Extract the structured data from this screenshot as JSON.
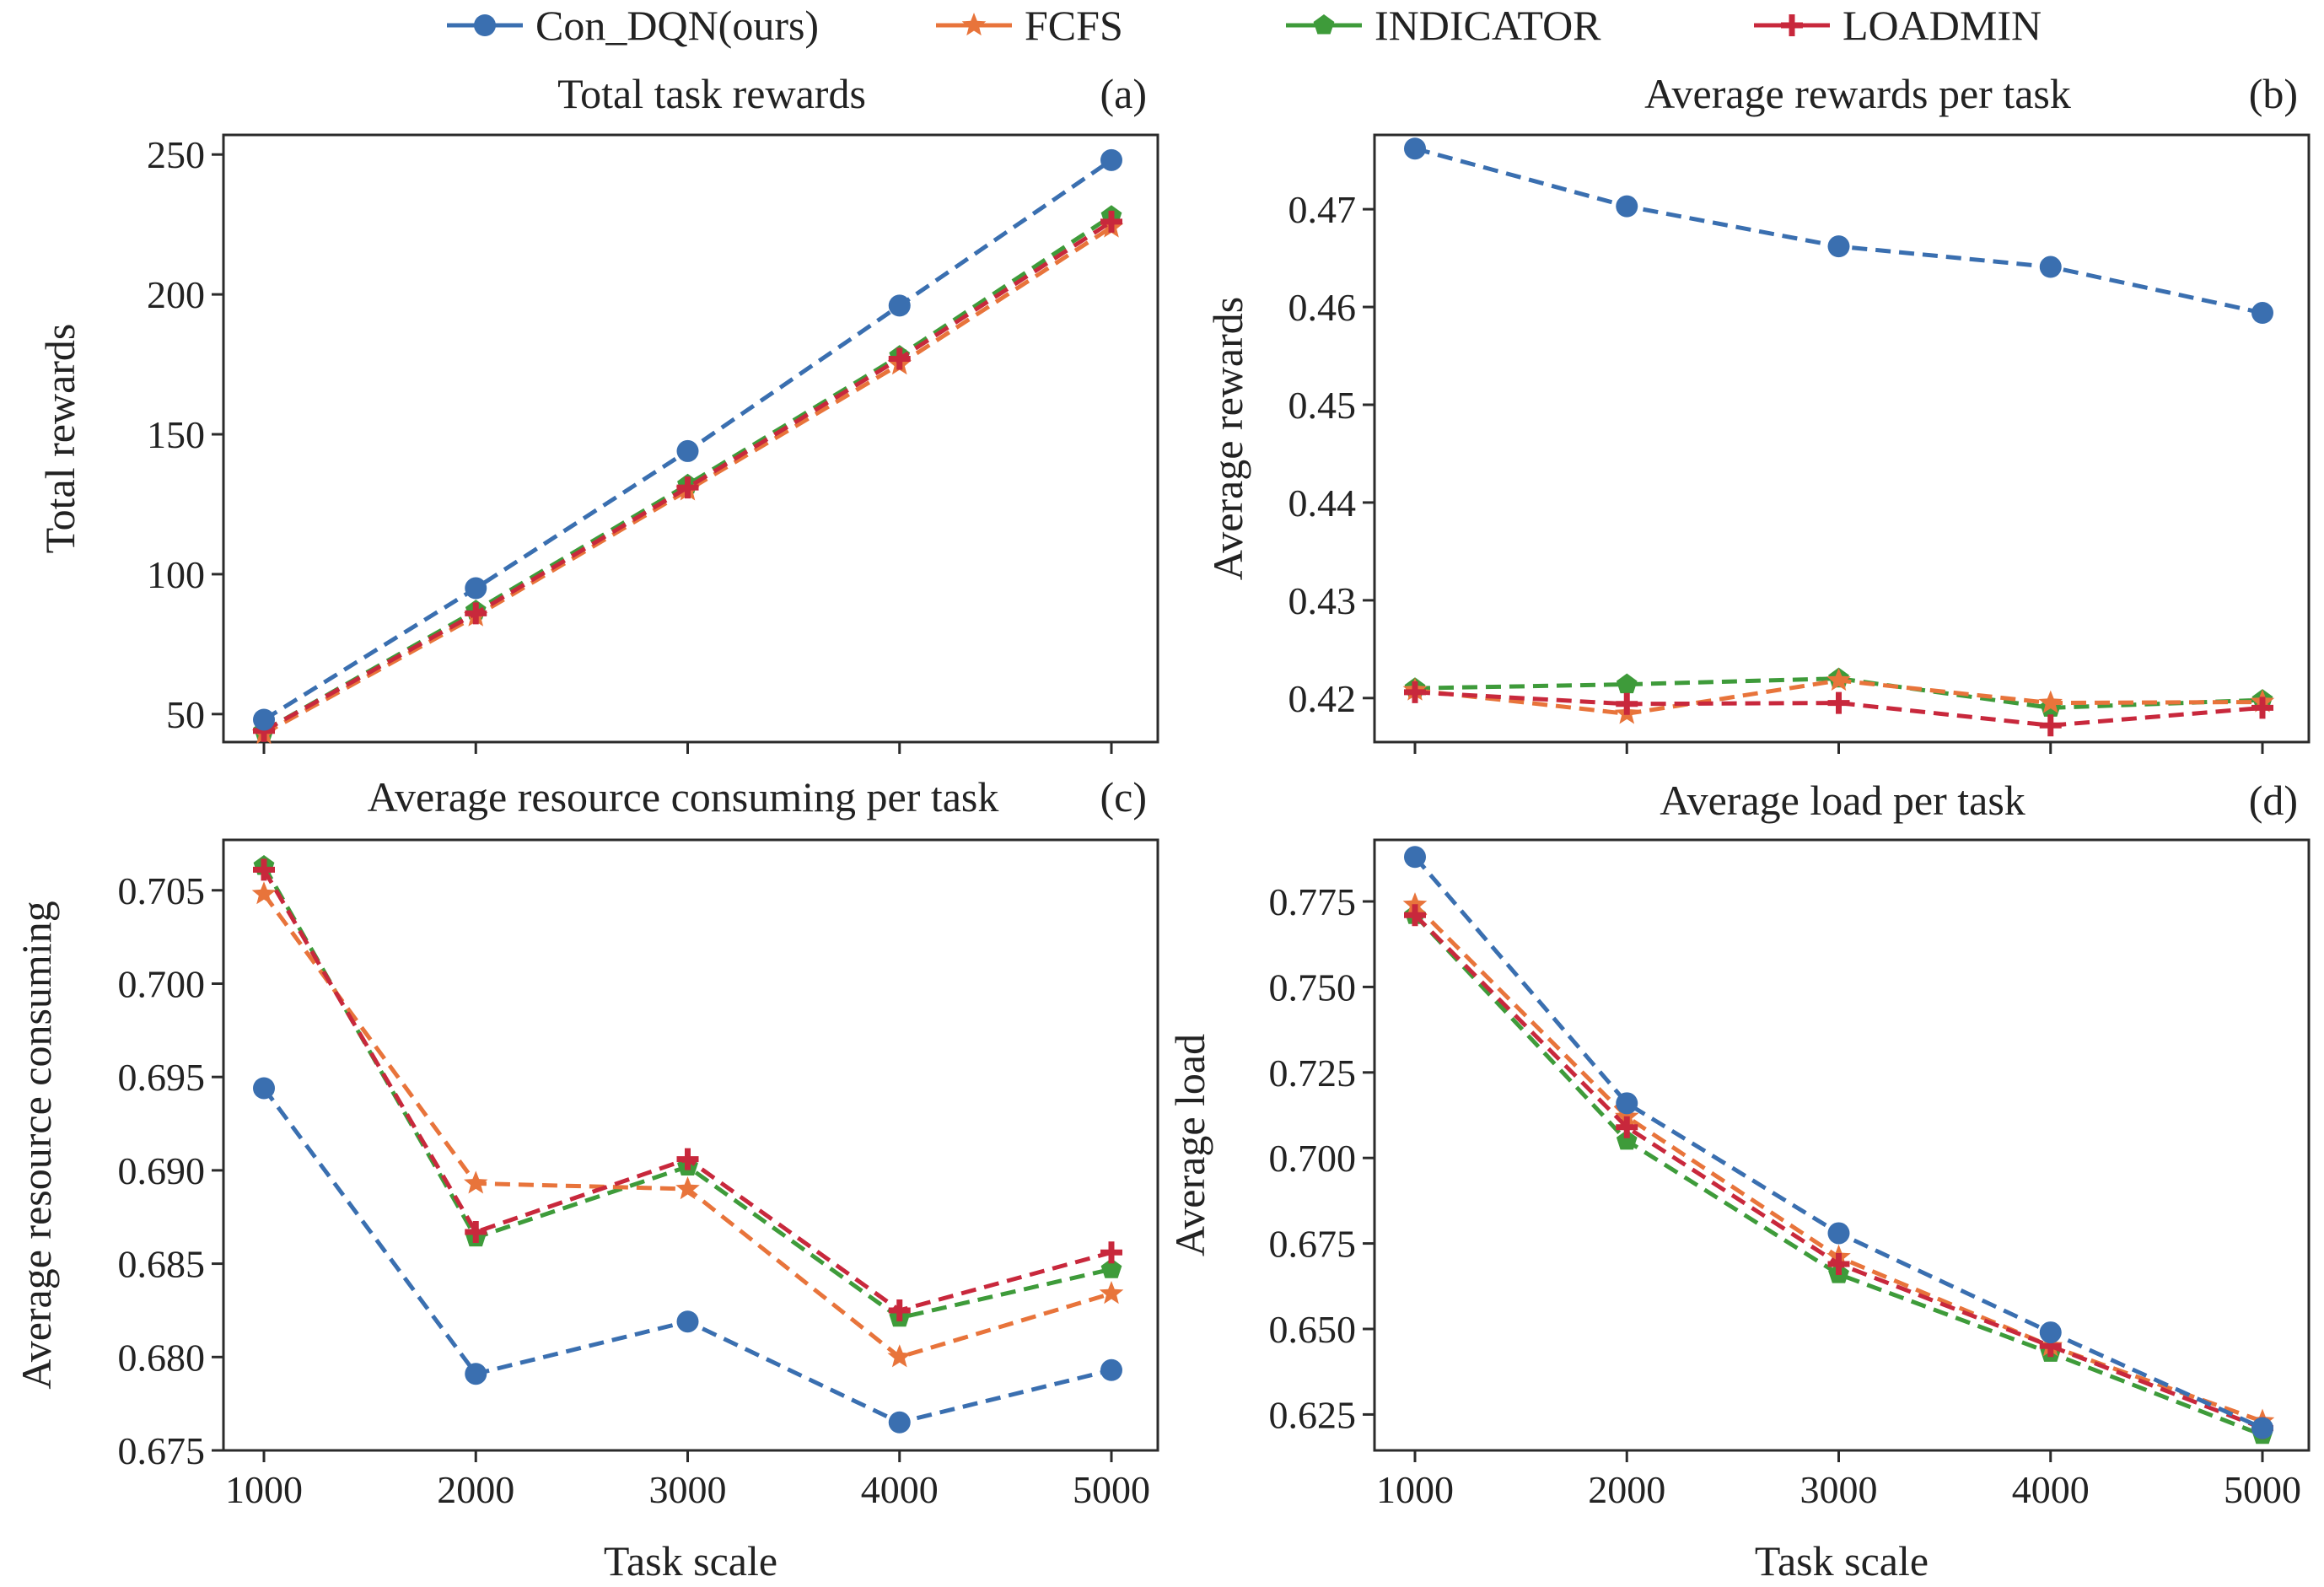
{
  "legend": {
    "entries": [
      {
        "label": "Con_DQN(ours)",
        "color": "#3a6fb0",
        "marker": "circle"
      },
      {
        "label": "FCFS",
        "color": "#e8743b",
        "marker": "star"
      },
      {
        "label": "INDICATOR",
        "color": "#3e9b3a",
        "marker": "pentagon"
      },
      {
        "label": "LOADMIN",
        "color": "#c8283c",
        "marker": "plus"
      }
    ]
  },
  "chart_data": [
    {
      "type": "line",
      "tag": "(a)",
      "title": "Total task rewards",
      "xlabel": "",
      "ylabel": "Total rewards",
      "x": [
        1000,
        2000,
        3000,
        4000,
        5000
      ],
      "xticks": [],
      "ylim": [
        40,
        257
      ],
      "yticks": [
        50,
        100,
        150,
        200,
        250
      ],
      "ytick_labels": [
        "50",
        "100",
        "150",
        "200",
        "250"
      ],
      "series": [
        {
          "name": "Con_DQN(ours)",
          "values": [
            48,
            95,
            144,
            196,
            248
          ]
        },
        {
          "name": "FCFS",
          "values": [
            43,
            85,
            130,
            175,
            224
          ]
        },
        {
          "name": "INDICATOR",
          "values": [
            44,
            87,
            132,
            178,
            228
          ]
        },
        {
          "name": "LOADMIN",
          "values": [
            44,
            86,
            131,
            177,
            226
          ]
        }
      ]
    },
    {
      "type": "line",
      "tag": "(b)",
      "title": "Average rewards per task",
      "xlabel": "",
      "ylabel": "Average rewards",
      "x": [
        1000,
        2000,
        3000,
        4000,
        5000
      ],
      "xticks": [],
      "ylim": [
        0.4155,
        0.4776
      ],
      "yticks": [
        0.42,
        0.43,
        0.44,
        0.45,
        0.46,
        0.47
      ],
      "ytick_labels": [
        "0.42",
        "0.43",
        "0.44",
        "0.45",
        "0.46",
        "0.47"
      ],
      "series": [
        {
          "name": "Con_DQN(ours)",
          "values": [
            0.4762,
            0.4703,
            0.4662,
            0.4641,
            0.4594
          ]
        },
        {
          "name": "FCFS",
          "values": [
            0.4208,
            0.4184,
            0.4218,
            0.4195,
            0.4196
          ]
        },
        {
          "name": "INDICATOR",
          "values": [
            0.421,
            0.4214,
            0.422,
            0.419,
            0.4198
          ]
        },
        {
          "name": "LOADMIN",
          "values": [
            0.4206,
            0.4194,
            0.4195,
            0.4172,
            0.419
          ]
        }
      ]
    },
    {
      "type": "line",
      "tag": "(c)",
      "title": "Average resource consuming per task",
      "xlabel": "Task scale",
      "ylabel": "Average resource consuming",
      "x": [
        1000,
        2000,
        3000,
        4000,
        5000
      ],
      "xticks": [
        1000,
        2000,
        3000,
        4000,
        5000
      ],
      "xtick_labels": [
        "1000",
        "2000",
        "3000",
        "4000",
        "5000"
      ],
      "ylim": [
        0.675,
        0.7077
      ],
      "yticks": [
        0.675,
        0.68,
        0.685,
        0.69,
        0.695,
        0.7,
        0.705
      ],
      "ytick_labels": [
        "0.675",
        "0.680",
        "0.685",
        "0.690",
        "0.695",
        "0.700",
        "0.705"
      ],
      "series": [
        {
          "name": "Con_DQN(ours)",
          "values": [
            0.6944,
            0.6791,
            0.6819,
            0.6765,
            0.6793
          ]
        },
        {
          "name": "FCFS",
          "values": [
            0.7048,
            0.6893,
            0.689,
            0.68,
            0.6834
          ]
        },
        {
          "name": "INDICATOR",
          "values": [
            0.7063,
            0.6864,
            0.6902,
            0.6821,
            0.6847
          ]
        },
        {
          "name": "LOADMIN",
          "values": [
            0.7061,
            0.6867,
            0.6906,
            0.6825,
            0.6856
          ]
        }
      ]
    },
    {
      "type": "line",
      "tag": "(d)",
      "title": "Average load per task",
      "xlabel": "Task scale",
      "ylabel": "Average load",
      "x": [
        1000,
        2000,
        3000,
        4000,
        5000
      ],
      "xticks": [
        1000,
        2000,
        3000,
        4000,
        5000
      ],
      "xtick_labels": [
        "1000",
        "2000",
        "3000",
        "4000",
        "5000"
      ],
      "ylim": [
        0.6145,
        0.793
      ],
      "yticks": [
        0.625,
        0.65,
        0.675,
        0.7,
        0.725,
        0.75,
        0.775
      ],
      "ytick_labels": [
        "0.625",
        "0.650",
        "0.675",
        "0.700",
        "0.725",
        "0.750",
        "0.775"
      ],
      "series": [
        {
          "name": "Con_DQN(ours)",
          "values": [
            0.788,
            0.716,
            0.678,
            0.649,
            0.621
          ]
        },
        {
          "name": "FCFS",
          "values": [
            0.774,
            0.712,
            0.671,
            0.645,
            0.623
          ]
        },
        {
          "name": "INDICATOR",
          "values": [
            0.771,
            0.705,
            0.666,
            0.643,
            0.619
          ]
        },
        {
          "name": "LOADMIN",
          "values": [
            0.771,
            0.709,
            0.669,
            0.645,
            0.621
          ]
        }
      ]
    }
  ]
}
